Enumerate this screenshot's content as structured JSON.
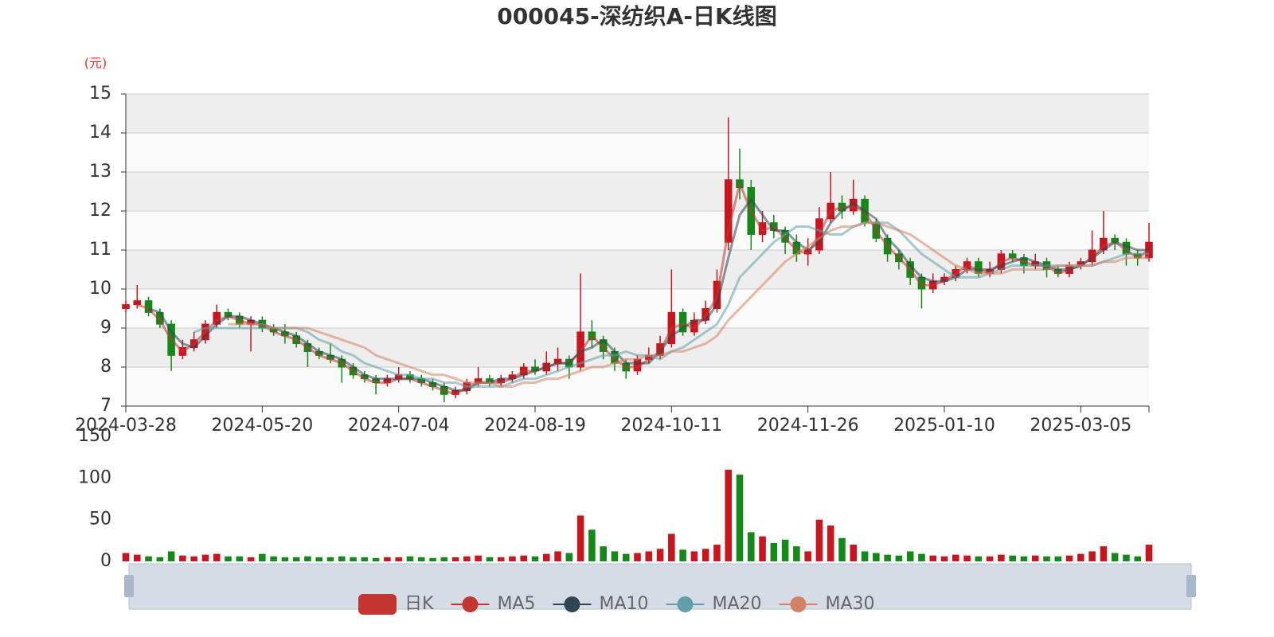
{
  "chart_data": {
    "type": "candlestick",
    "title": "000045-深纺织A-日K线图",
    "y_unit": "(元)",
    "categories": [
      "2024-03-28",
      null,
      null,
      null,
      null,
      null,
      null,
      null,
      null,
      null,
      null,
      null,
      "2024-05-20",
      null,
      null,
      null,
      null,
      null,
      null,
      null,
      null,
      null,
      null,
      null,
      "2024-07-04",
      null,
      null,
      null,
      null,
      null,
      null,
      null,
      null,
      null,
      null,
      null,
      "2024-08-19",
      null,
      null,
      null,
      null,
      null,
      null,
      null,
      null,
      null,
      null,
      null,
      "2024-10-11",
      null,
      null,
      null,
      null,
      null,
      null,
      null,
      null,
      null,
      null,
      null,
      "2024-11-26",
      null,
      null,
      null,
      null,
      null,
      null,
      null,
      null,
      null,
      null,
      null,
      "2025-01-10",
      null,
      null,
      null,
      null,
      null,
      null,
      null,
      null,
      null,
      null,
      null,
      "2025-03-05",
      null,
      null,
      null,
      null,
      null,
      null
    ],
    "candles_name": "日K",
    "candles": [
      [
        9.5,
        9.6,
        9.4,
        9.7
      ],
      [
        9.6,
        9.7,
        9.5,
        10.1
      ],
      [
        9.7,
        9.4,
        9.3,
        9.8
      ],
      [
        9.4,
        9.1,
        9.0,
        9.5
      ],
      [
        9.1,
        8.3,
        7.9,
        9.2
      ],
      [
        8.3,
        8.5,
        8.2,
        8.7
      ],
      [
        8.5,
        8.7,
        8.4,
        8.9
      ],
      [
        8.7,
        9.1,
        8.6,
        9.2
      ],
      [
        9.1,
        9.4,
        9.0,
        9.6
      ],
      [
        9.4,
        9.3,
        9.2,
        9.5
      ],
      [
        9.3,
        9.1,
        9.0,
        9.4
      ],
      [
        9.1,
        9.2,
        8.4,
        9.3
      ],
      [
        9.2,
        9.0,
        8.9,
        9.3
      ],
      [
        9.0,
        8.9,
        8.8,
        9.1
      ],
      [
        8.9,
        8.8,
        8.6,
        9.1
      ],
      [
        8.8,
        8.6,
        8.5,
        8.9
      ],
      [
        8.6,
        8.4,
        8.0,
        8.7
      ],
      [
        8.4,
        8.3,
        8.2,
        8.5
      ],
      [
        8.3,
        8.2,
        8.1,
        8.6
      ],
      [
        8.2,
        8.0,
        7.6,
        8.3
      ],
      [
        8.0,
        7.8,
        7.7,
        8.1
      ],
      [
        7.8,
        7.7,
        7.6,
        7.9
      ],
      [
        7.7,
        7.6,
        7.3,
        7.8
      ],
      [
        7.6,
        7.7,
        7.5,
        7.8
      ],
      [
        7.7,
        7.8,
        7.6,
        8.0
      ],
      [
        7.8,
        7.7,
        7.6,
        7.9
      ],
      [
        7.7,
        7.6,
        7.5,
        7.8
      ],
      [
        7.6,
        7.5,
        7.4,
        7.7
      ],
      [
        7.5,
        7.3,
        7.1,
        7.6
      ],
      [
        7.3,
        7.4,
        7.2,
        7.5
      ],
      [
        7.4,
        7.6,
        7.3,
        7.7
      ],
      [
        7.6,
        7.7,
        7.5,
        8.0
      ],
      [
        7.7,
        7.6,
        7.5,
        7.8
      ],
      [
        7.6,
        7.7,
        7.5,
        7.8
      ],
      [
        7.7,
        7.8,
        7.6,
        7.9
      ],
      [
        7.8,
        8.0,
        7.7,
        8.1
      ],
      [
        8.0,
        7.9,
        7.8,
        8.2
      ],
      [
        7.9,
        8.1,
        7.8,
        8.4
      ],
      [
        8.1,
        8.2,
        7.9,
        8.5
      ],
      [
        8.2,
        8.0,
        7.7,
        8.3
      ],
      [
        8.0,
        8.9,
        7.9,
        10.4
      ],
      [
        8.9,
        8.7,
        8.5,
        9.2
      ],
      [
        8.7,
        8.4,
        8.2,
        8.8
      ],
      [
        8.4,
        8.1,
        7.9,
        8.5
      ],
      [
        8.1,
        7.9,
        7.7,
        8.2
      ],
      [
        7.9,
        8.2,
        7.8,
        8.3
      ],
      [
        8.2,
        8.3,
        8.1,
        8.5
      ],
      [
        8.3,
        8.6,
        8.2,
        8.8
      ],
      [
        8.6,
        9.4,
        8.5,
        10.5
      ],
      [
        9.4,
        8.9,
        8.8,
        9.5
      ],
      [
        8.9,
        9.2,
        8.8,
        9.4
      ],
      [
        9.2,
        9.5,
        9.1,
        9.7
      ],
      [
        9.5,
        10.2,
        9.4,
        10.5
      ],
      [
        11.2,
        12.8,
        11.0,
        14.4
      ],
      [
        12.8,
        12.6,
        12.3,
        13.6
      ],
      [
        12.6,
        11.4,
        11.0,
        12.8
      ],
      [
        11.4,
        11.7,
        11.2,
        12.0
      ],
      [
        11.7,
        11.5,
        11.3,
        11.9
      ],
      [
        11.5,
        11.2,
        10.9,
        11.6
      ],
      [
        11.2,
        10.9,
        10.7,
        11.4
      ],
      [
        10.9,
        11.0,
        10.6,
        11.3
      ],
      [
        11.0,
        11.8,
        10.9,
        12.1
      ],
      [
        11.8,
        12.2,
        11.7,
        13.0
      ],
      [
        12.2,
        12.0,
        11.8,
        12.4
      ],
      [
        12.0,
        12.3,
        11.9,
        12.8
      ],
      [
        12.3,
        11.7,
        11.6,
        12.4
      ],
      [
        11.7,
        11.3,
        11.2,
        11.8
      ],
      [
        11.3,
        10.9,
        10.7,
        11.4
      ],
      [
        10.9,
        10.7,
        10.5,
        11.0
      ],
      [
        10.7,
        10.3,
        10.1,
        10.8
      ],
      [
        10.3,
        10.0,
        9.5,
        10.4
      ],
      [
        10.0,
        10.2,
        9.9,
        10.4
      ],
      [
        10.2,
        10.3,
        10.1,
        10.4
      ],
      [
        10.3,
        10.5,
        10.2,
        10.6
      ],
      [
        10.5,
        10.7,
        10.4,
        10.8
      ],
      [
        10.7,
        10.4,
        10.3,
        10.8
      ],
      [
        10.4,
        10.5,
        10.3,
        10.7
      ],
      [
        10.5,
        10.9,
        10.4,
        11.0
      ],
      [
        10.9,
        10.8,
        10.7,
        11.0
      ],
      [
        10.8,
        10.6,
        10.4,
        10.9
      ],
      [
        10.6,
        10.7,
        10.5,
        10.9
      ],
      [
        10.7,
        10.5,
        10.3,
        10.8
      ],
      [
        10.5,
        10.4,
        10.3,
        10.6
      ],
      [
        10.4,
        10.6,
        10.3,
        10.7
      ],
      [
        10.6,
        10.7,
        10.5,
        10.8
      ],
      [
        10.7,
        11.0,
        10.6,
        11.5
      ],
      [
        11.0,
        11.3,
        10.9,
        12.0
      ],
      [
        11.3,
        11.2,
        11.0,
        11.4
      ],
      [
        11.2,
        10.9,
        10.6,
        11.3
      ],
      [
        10.9,
        10.8,
        10.6,
        11.0
      ],
      [
        10.8,
        11.2,
        10.7,
        11.7
      ]
    ],
    "up_color": "#c7161e",
    "down_color": "#14891a",
    "candles_color": "#c23531",
    "series": [
      {
        "name": "MA5",
        "color": "#c23531",
        "values": [
          null,
          9.6,
          9.5,
          9.2,
          8.7,
          8.4,
          8.6,
          8.9,
          9.2,
          9.3,
          9.2,
          9.1,
          9.1,
          8.9,
          8.8,
          8.7,
          8.5,
          8.3,
          8.2,
          8.1,
          7.9,
          7.7,
          7.6,
          7.6,
          7.7,
          7.7,
          7.6,
          7.5,
          7.4,
          7.3,
          7.5,
          7.6,
          7.6,
          7.6,
          7.7,
          7.9,
          7.9,
          8.0,
          8.1,
          8.1,
          8.4,
          8.8,
          8.5,
          8.2,
          8.0,
          8.0,
          8.2,
          8.4,
          9.0,
          9.1,
          9.0,
          9.3,
          9.8,
          11.5,
          12.7,
          12.0,
          11.5,
          11.6,
          11.3,
          11.0,
          10.9,
          11.4,
          12.0,
          12.1,
          12.1,
          12.0,
          11.5,
          11.1,
          10.8,
          10.5,
          10.1,
          10.1,
          10.2,
          10.4,
          10.6,
          10.5,
          10.4,
          10.7,
          10.8,
          10.7,
          10.6,
          10.6,
          10.4,
          10.5,
          10.6,
          10.8,
          11.1,
          11.2,
          11.0,
          10.8,
          11.0
        ]
      },
      {
        "name": "MA10",
        "color": "#2f4554",
        "values": [
          null,
          null,
          9.5,
          9.4,
          8.9,
          8.6,
          8.5,
          8.8,
          9.1,
          9.3,
          9.3,
          9.2,
          9.1,
          9.0,
          8.9,
          8.8,
          8.6,
          8.4,
          8.3,
          8.2,
          8.0,
          7.8,
          7.7,
          7.7,
          7.7,
          7.7,
          7.7,
          7.6,
          7.5,
          7.4,
          7.4,
          7.6,
          7.6,
          7.7,
          7.7,
          7.8,
          7.9,
          8.0,
          8.1,
          8.1,
          8.4,
          8.5,
          8.7,
          8.4,
          8.1,
          8.1,
          8.1,
          8.4,
          8.8,
          9.0,
          9.2,
          9.2,
          9.6,
          10.8,
          11.9,
          12.3,
          11.9,
          11.5,
          11.5,
          11.2,
          11.0,
          11.2,
          11.7,
          12.0,
          12.2,
          12.0,
          11.8,
          11.3,
          11.0,
          10.6,
          10.3,
          10.2,
          10.2,
          10.3,
          10.5,
          10.5,
          10.5,
          10.6,
          10.7,
          10.8,
          10.7,
          10.6,
          10.5,
          10.5,
          10.6,
          10.8,
          11.0,
          11.2,
          11.1,
          11.0,
          11.0
        ]
      },
      {
        "name": "MA20",
        "color": "#61a0a8",
        "values": [
          null,
          null,
          null,
          null,
          null,
          null,
          8.9,
          9.0,
          9.0,
          9.0,
          9.0,
          9.0,
          9.0,
          9.0,
          9.0,
          9.0,
          8.9,
          8.7,
          8.6,
          8.4,
          8.3,
          8.1,
          8.0,
          7.9,
          7.8,
          7.8,
          7.7,
          7.7,
          7.6,
          7.6,
          7.5,
          7.5,
          7.5,
          7.5,
          7.6,
          7.7,
          7.7,
          7.8,
          7.9,
          8.0,
          8.1,
          8.2,
          8.3,
          8.3,
          8.4,
          8.3,
          8.3,
          8.2,
          8.4,
          8.5,
          8.7,
          8.9,
          9.1,
          9.6,
          10.3,
          10.6,
          10.9,
          11.2,
          11.4,
          11.6,
          11.6,
          11.5,
          11.4,
          11.4,
          11.6,
          11.7,
          11.7,
          11.7,
          11.5,
          11.2,
          10.9,
          10.7,
          10.5,
          10.3,
          10.3,
          10.3,
          10.4,
          10.5,
          10.6,
          10.6,
          10.6,
          10.6,
          10.6,
          10.6,
          10.6,
          10.6,
          10.7,
          10.8,
          10.9,
          10.9,
          10.9
        ]
      },
      {
        "name": "MA30",
        "color": "#d48265",
        "values": [
          null,
          null,
          null,
          null,
          null,
          null,
          null,
          null,
          null,
          9.1,
          9.1,
          9.1,
          9.1,
          9.0,
          9.0,
          9.0,
          9.0,
          8.9,
          8.8,
          8.7,
          8.6,
          8.5,
          8.3,
          8.2,
          8.1,
          8.0,
          7.9,
          7.8,
          7.8,
          7.7,
          7.6,
          7.6,
          7.6,
          7.5,
          7.5,
          7.6,
          7.6,
          7.7,
          7.7,
          7.8,
          7.9,
          8.0,
          8.0,
          8.1,
          8.2,
          8.2,
          8.3,
          8.3,
          8.4,
          8.4,
          8.5,
          8.6,
          8.8,
          9.2,
          9.5,
          9.8,
          10.1,
          10.4,
          10.7,
          10.9,
          11.1,
          11.3,
          11.5,
          11.6,
          11.6,
          11.7,
          11.7,
          11.6,
          11.5,
          11.4,
          11.2,
          11.0,
          10.8,
          10.6,
          10.5,
          10.4,
          10.4,
          10.4,
          10.5,
          10.5,
          10.5,
          10.5,
          10.6,
          10.6,
          10.6,
          10.6,
          10.7,
          10.7,
          10.8,
          10.8,
          10.8
        ]
      }
    ],
    "ylim": [
      7,
      15
    ],
    "yticks": [
      7,
      8,
      9,
      10,
      11,
      12,
      13,
      14,
      15
    ],
    "volumes": [
      10,
      8,
      6,
      5,
      12,
      7,
      6,
      8,
      9,
      6,
      6,
      5,
      9,
      6,
      5,
      5,
      6,
      5,
      5,
      6,
      5,
      5,
      4,
      5,
      5,
      6,
      5,
      4,
      5,
      5,
      6,
      7,
      5,
      5,
      6,
      7,
      6,
      9,
      12,
      10,
      55,
      38,
      18,
      12,
      9,
      10,
      12,
      15,
      33,
      14,
      12,
      15,
      20,
      110,
      104,
      35,
      30,
      22,
      26,
      18,
      12,
      50,
      43,
      28,
      20,
      12,
      10,
      8,
      7,
      12,
      9,
      7,
      6,
      8,
      7,
      6,
      6,
      8,
      7,
      6,
      7,
      6,
      6,
      7,
      9,
      12,
      18,
      10,
      8,
      6,
      20
    ],
    "vol_ylim": [
      0,
      150
    ],
    "vol_yticks": [
      0,
      50,
      100,
      150
    ]
  }
}
